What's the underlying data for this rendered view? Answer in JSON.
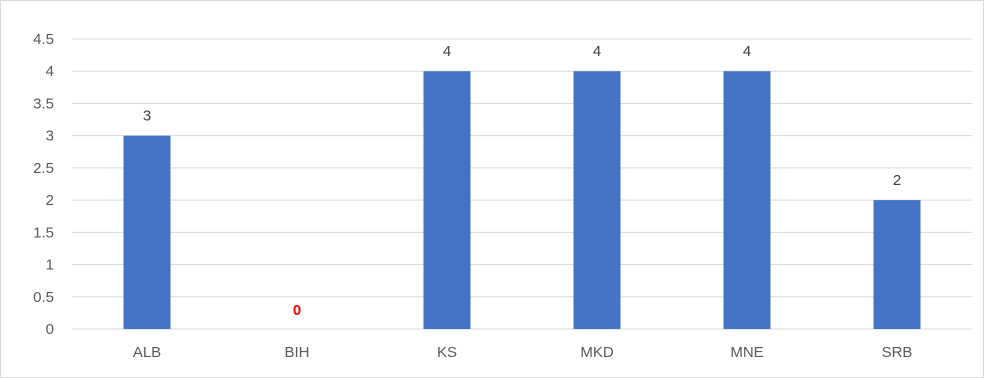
{
  "chart_data": {
    "type": "bar",
    "categories": [
      "ALB",
      "BIH",
      "KS",
      "MKD",
      "MNE",
      "SRB"
    ],
    "values": [
      3,
      0,
      4,
      4,
      4,
      2
    ],
    "data_labels": [
      "3",
      "0",
      "4",
      "4",
      "4",
      "2"
    ],
    "title": "",
    "xlabel": "",
    "ylabel": "",
    "ylim": [
      0,
      4.5
    ],
    "yticks": [
      "0",
      "0.5",
      "1",
      "1.5",
      "2",
      "2.5",
      "3",
      "3.5",
      "4",
      "4.5"
    ],
    "grid": true,
    "legend": "none",
    "bar_color": "#4472c4",
    "zero_label_color": "#ff0000"
  }
}
